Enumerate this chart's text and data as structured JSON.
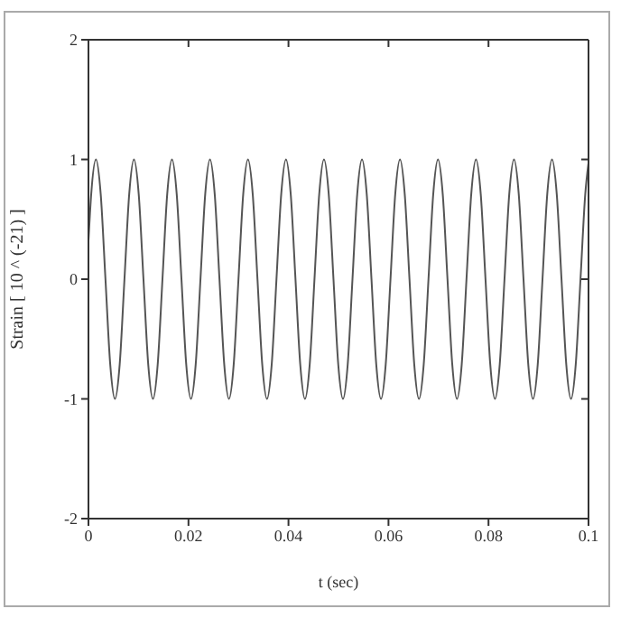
{
  "chart_data": {
    "type": "line",
    "xlabel": "t (sec)",
    "ylabel": "Strain [ 10 ^ (-21) ]",
    "xlim": [
      0,
      0.1
    ],
    "xticks": [
      0,
      0.02,
      0.04,
      0.06,
      0.08,
      0.1
    ],
    "ylim": [
      -2,
      2
    ],
    "yticks": [
      -2,
      -1,
      0,
      1,
      2
    ],
    "marker": "none",
    "line_style": "solid",
    "series": [
      {
        "color": "#555555",
        "x": [
          0,
          0.00055,
          0.0015,
          0.00245,
          0.0034,
          0.00435,
          0.0053,
          0.00625,
          0.0072,
          0.00815,
          0.0091,
          0.01005,
          0.011,
          0.01195,
          0.0129,
          0.01385,
          0.0148,
          0.01575,
          0.0167,
          0.01765,
          0.0186,
          0.01955,
          0.0205,
          0.02145,
          0.0224,
          0.02335,
          0.0243,
          0.02525,
          0.0262,
          0.02715,
          0.0281,
          0.02905,
          0.03,
          0.03095,
          0.0319,
          0.03285,
          0.0338,
          0.03475,
          0.0357,
          0.03665,
          0.0376,
          0.03855,
          0.0395,
          0.04045,
          0.0414,
          0.04235,
          0.0433,
          0.04425,
          0.0452,
          0.04615,
          0.0471,
          0.04805,
          0.049,
          0.04995,
          0.0509,
          0.05185,
          0.0528,
          0.05375,
          0.0547,
          0.05565,
          0.0566,
          0.05755,
          0.0585,
          0.05945,
          0.0604,
          0.06135,
          0.0623,
          0.06325,
          0.0642,
          0.06515,
          0.0661,
          0.06705,
          0.068,
          0.06895,
          0.0699,
          0.07085,
          0.0718,
          0.07275,
          0.0737,
          0.07465,
          0.0756,
          0.07655,
          0.0775,
          0.07845,
          0.0794,
          0.08035,
          0.0813,
          0.08225,
          0.0832,
          0.08415,
          0.0851,
          0.08605,
          0.087,
          0.08795,
          0.0889,
          0.08985,
          0.0908,
          0.09175,
          0.0927,
          0.09365,
          0.0946,
          0.09555,
          0.0965,
          0.09745,
          0.0984,
          0.09935,
          0.1
        ],
        "values": [
          0.32,
          0.71,
          1,
          0.71,
          0,
          -0.71,
          -1,
          -0.71,
          0,
          0.71,
          1,
          0.71,
          0,
          -0.71,
          -1,
          -0.71,
          0,
          0.71,
          1,
          0.71,
          0,
          -0.71,
          -1,
          -0.71,
          0,
          0.71,
          1,
          0.71,
          0,
          -0.71,
          -1,
          -0.71,
          0,
          0.71,
          1,
          0.71,
          0,
          -0.71,
          -1,
          -0.71,
          0,
          0.71,
          1,
          0.71,
          0,
          -0.71,
          -1,
          -0.71,
          0,
          0.71,
          1,
          0.71,
          0,
          -0.71,
          -1,
          -0.71,
          0,
          0.71,
          1,
          0.71,
          0,
          -0.71,
          -1,
          -0.71,
          0,
          0.71,
          1,
          0.71,
          0,
          -0.71,
          -1,
          -0.71,
          0,
          0.71,
          1,
          0.71,
          0,
          -0.71,
          -1,
          -0.71,
          0,
          0.71,
          1,
          0.71,
          0,
          -0.71,
          -1,
          -0.71,
          0,
          0.71,
          1,
          0.71,
          0,
          -0.71,
          -1,
          -0.71,
          0,
          0.71,
          1,
          0.71,
          0,
          -0.71,
          -1,
          -0.71,
          0,
          0.71,
          0.97
        ]
      }
    ]
  }
}
